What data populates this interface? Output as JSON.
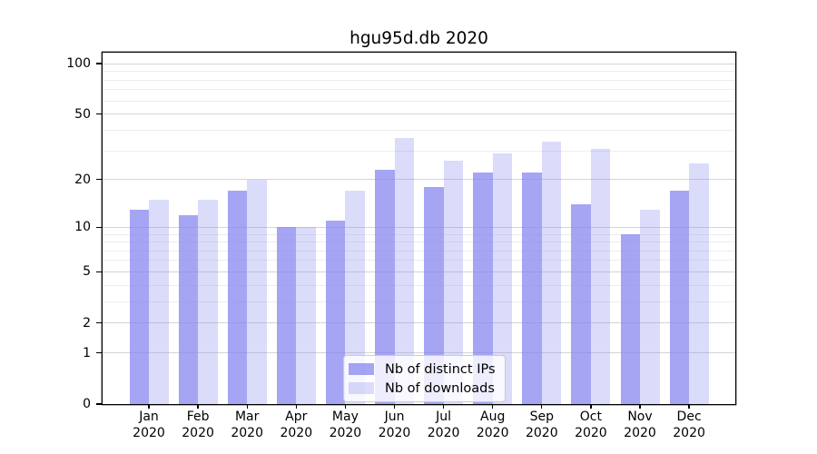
{
  "chart_data": {
    "type": "bar",
    "title": "hgu95d.db 2020",
    "x_year_line": "2020",
    "categories": [
      "Jan",
      "Feb",
      "Mar",
      "Apr",
      "May",
      "Jun",
      "Jul",
      "Aug",
      "Sep",
      "Oct",
      "Nov",
      "Dec"
    ],
    "series": [
      {
        "name": "Nb of distinct IPs",
        "color": "#8787f0",
        "alpha": 0.75,
        "values": [
          13,
          12,
          17,
          10,
          11,
          23,
          18,
          22,
          22,
          14,
          9,
          17
        ]
      },
      {
        "name": "Nb of downloads",
        "color": "#8787f0",
        "alpha": 0.3,
        "values": [
          15,
          15,
          20,
          10,
          17,
          36,
          26,
          29,
          34,
          31,
          13,
          25
        ]
      }
    ],
    "yscale": "log1p",
    "yticks": [
      0,
      1,
      2,
      5,
      10,
      20,
      50,
      100
    ],
    "yticks_minor": [
      3,
      4,
      6,
      7,
      8,
      9,
      30,
      40,
      60,
      70,
      80,
      90
    ],
    "ylim": [
      0,
      116
    ],
    "grid": true,
    "legend_position": "lower center",
    "colors": {
      "grid_major": "#d4d4d4",
      "grid_minor": "#ededed",
      "spine": "#000000",
      "text": "#000000"
    }
  }
}
